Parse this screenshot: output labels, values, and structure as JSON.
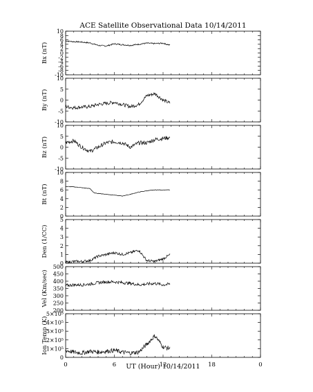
{
  "title": "ACE Satellite Observational Data   10/14/2011",
  "xlabel": "UT (Hour)   10/14/2011",
  "x_ticks": [
    "0",
    "6",
    "12",
    "18",
    "0"
  ],
  "chart_data": [
    {
      "type": "line",
      "ylabel": "Bx (nT)",
      "ylim": [
        -10,
        10
      ],
      "yticks": [
        "10",
        "8",
        "6",
        "4",
        "2",
        "0",
        "-2",
        "-4",
        "-6",
        "-8",
        "-10"
      ],
      "x": [
        0,
        1,
        2,
        3,
        4,
        5,
        6,
        7,
        8,
        9,
        10,
        11,
        12,
        12.9
      ],
      "values": [
        5.5,
        5.2,
        5.0,
        4.6,
        3.5,
        3.2,
        4.2,
        3.8,
        3.5,
        4.0,
        4.5,
        4.3,
        4.5,
        3.5
      ]
    },
    {
      "type": "line",
      "ylabel": "By (nT)",
      "ylim": [
        -10,
        10
      ],
      "yticks": [
        "10",
        "5",
        "0",
        "-5",
        "-10"
      ],
      "x": [
        0,
        1,
        2,
        3,
        4,
        5,
        6,
        7,
        8,
        9,
        10,
        11,
        12,
        12.9
      ],
      "values": [
        -3,
        -3.5,
        -3.2,
        -3,
        -2,
        -1.5,
        -1,
        -2,
        -3,
        -2,
        2,
        3,
        0,
        -1.5
      ]
    },
    {
      "type": "line",
      "ylabel": "Bz (nT)",
      "ylim": [
        -10,
        10
      ],
      "yticks": [
        "10",
        "5",
        "0",
        "-5",
        "-10"
      ],
      "x": [
        0,
        1,
        2,
        3,
        4,
        5,
        6,
        7,
        8,
        9,
        10,
        11,
        12,
        12.9
      ],
      "values": [
        2,
        3,
        0,
        -2,
        0,
        2,
        2.5,
        2,
        0,
        2,
        2,
        3.5,
        4,
        4.5
      ]
    },
    {
      "type": "line",
      "ylabel": "Bt (nT)",
      "ylim": [
        0,
        10
      ],
      "yticks": [
        "10",
        "8",
        "6",
        "4",
        "2",
        "0"
      ],
      "x": [
        0,
        1,
        2,
        3,
        3.5,
        4,
        5,
        6,
        7,
        8,
        9,
        10,
        11,
        12,
        12.9
      ],
      "values": [
        6.8,
        6.7,
        6.5,
        6.3,
        5.3,
        5.2,
        5.0,
        4.8,
        4.6,
        5.0,
        5.5,
        5.8,
        6.0,
        6.0,
        6.0
      ]
    },
    {
      "type": "line",
      "ylabel": "Den (1/CC)",
      "ylim": [
        0,
        5
      ],
      "yticks": [
        "5",
        "4",
        "3",
        "2",
        "1",
        "0"
      ],
      "x": [
        0,
        1,
        2,
        3,
        4,
        5,
        6,
        7,
        8,
        9,
        10,
        11,
        12,
        12.9
      ],
      "values": [
        0.1,
        0.2,
        0.2,
        0.3,
        0.8,
        1.0,
        1.2,
        1.0,
        1.2,
        1.5,
        0.3,
        0.2,
        0.5,
        1.0
      ]
    },
    {
      "type": "line",
      "ylabel": "Vel (Km/sec)",
      "ylim": [
        200,
        500
      ],
      "yticks": [
        "500",
        "450",
        "400",
        "350",
        "300",
        "250",
        "200"
      ],
      "x": [
        0,
        1,
        2,
        3,
        4,
        5,
        6,
        7,
        8,
        9,
        10,
        11,
        12,
        12.9
      ],
      "values": [
        370,
        375,
        375,
        380,
        390,
        395,
        395,
        390,
        385,
        375,
        380,
        385,
        375,
        380
      ]
    },
    {
      "type": "line",
      "ylabel": "Ion Temp (K)",
      "ylim": [
        0,
        500000
      ],
      "yticks": [
        "5×10⁵",
        "4×10⁵",
        "3×10⁵",
        "2×10⁵",
        "1×10⁵",
        "0"
      ],
      "x": [
        0,
        1,
        2,
        3,
        4,
        5,
        6,
        7,
        8,
        9,
        10,
        11,
        12,
        12.9
      ],
      "values": [
        80000,
        60000,
        50000,
        70000,
        60000,
        70000,
        80000,
        60000,
        50000,
        60000,
        150000,
        250000,
        120000,
        100000
      ]
    }
  ]
}
